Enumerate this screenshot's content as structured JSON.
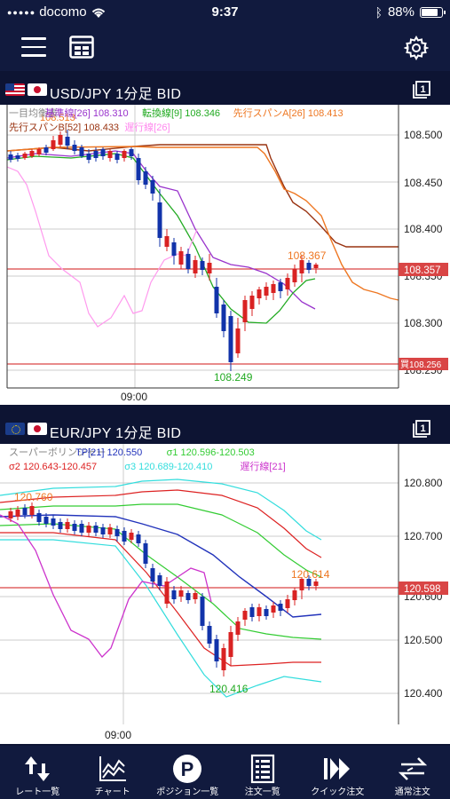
{
  "status": {
    "carrier": "docomo",
    "time": "9:37",
    "battery": "88%",
    "battery_level": 0.88
  },
  "panels": [
    {
      "pair": "USD/JPY 1分足 BID",
      "legend_line1": [
        {
          "text": "一目均衡表",
          "color": "#888888"
        },
        {
          "text": "基準線[26] 108.310",
          "color": "#9933cc"
        },
        {
          "text": "転換線[9] 108.346",
          "color": "#22aa22"
        },
        {
          "text": "先行スパンA[26] 108.413",
          "color": "#ee7722"
        }
      ],
      "legend_line2": [
        {
          "text": "先行スパンB[52] 108.433",
          "color": "#993311"
        },
        {
          "text": "遅行線[26]",
          "color": "#ff88ee"
        }
      ],
      "y_ticks": [
        "108.500",
        "108.450",
        "108.400",
        "108.350",
        "108.300",
        "108.250"
      ],
      "x_tick": "09:00",
      "bid_label": "108.357",
      "ask_label": "買108.256",
      "high_label": "108.367",
      "low_label": "108.249",
      "max_label": "108.513"
    },
    {
      "pair": "EUR/JPY 1分足 BID",
      "legend_line1": [
        {
          "text": "スーパーボリンジャー",
          "color": "#888888"
        },
        {
          "text": "TP[21] 120.550",
          "color": "#2233bb"
        },
        {
          "text": "σ1 120.596-120.503",
          "color": "#33cc33"
        }
      ],
      "legend_line2": [
        {
          "text": "σ2 120.643-120.457",
          "color": "#dd2222"
        },
        {
          "text": "σ3 120.689-120.410",
          "color": "#33dddd"
        },
        {
          "text": "遅行線[21]",
          "color": "#cc33cc"
        }
      ],
      "y_ticks": [
        "120.800",
        "120.700",
        "120.600",
        "120.500",
        "120.400"
      ],
      "x_tick": "09:00",
      "bid_label": "120.598",
      "high_label": "120.614",
      "low_label": "120.416",
      "max_label": "120.760"
    }
  ],
  "tabs": [
    {
      "label": "レート一覧",
      "icon": "rate-list-icon"
    },
    {
      "label": "チャート",
      "icon": "chart-icon"
    },
    {
      "label": "ポジション一覧",
      "icon": "position-icon"
    },
    {
      "label": "注文一覧",
      "icon": "order-list-icon"
    },
    {
      "label": "クイック注文",
      "icon": "quick-order-icon"
    },
    {
      "label": "通常注文",
      "icon": "normal-order-icon"
    }
  ]
}
